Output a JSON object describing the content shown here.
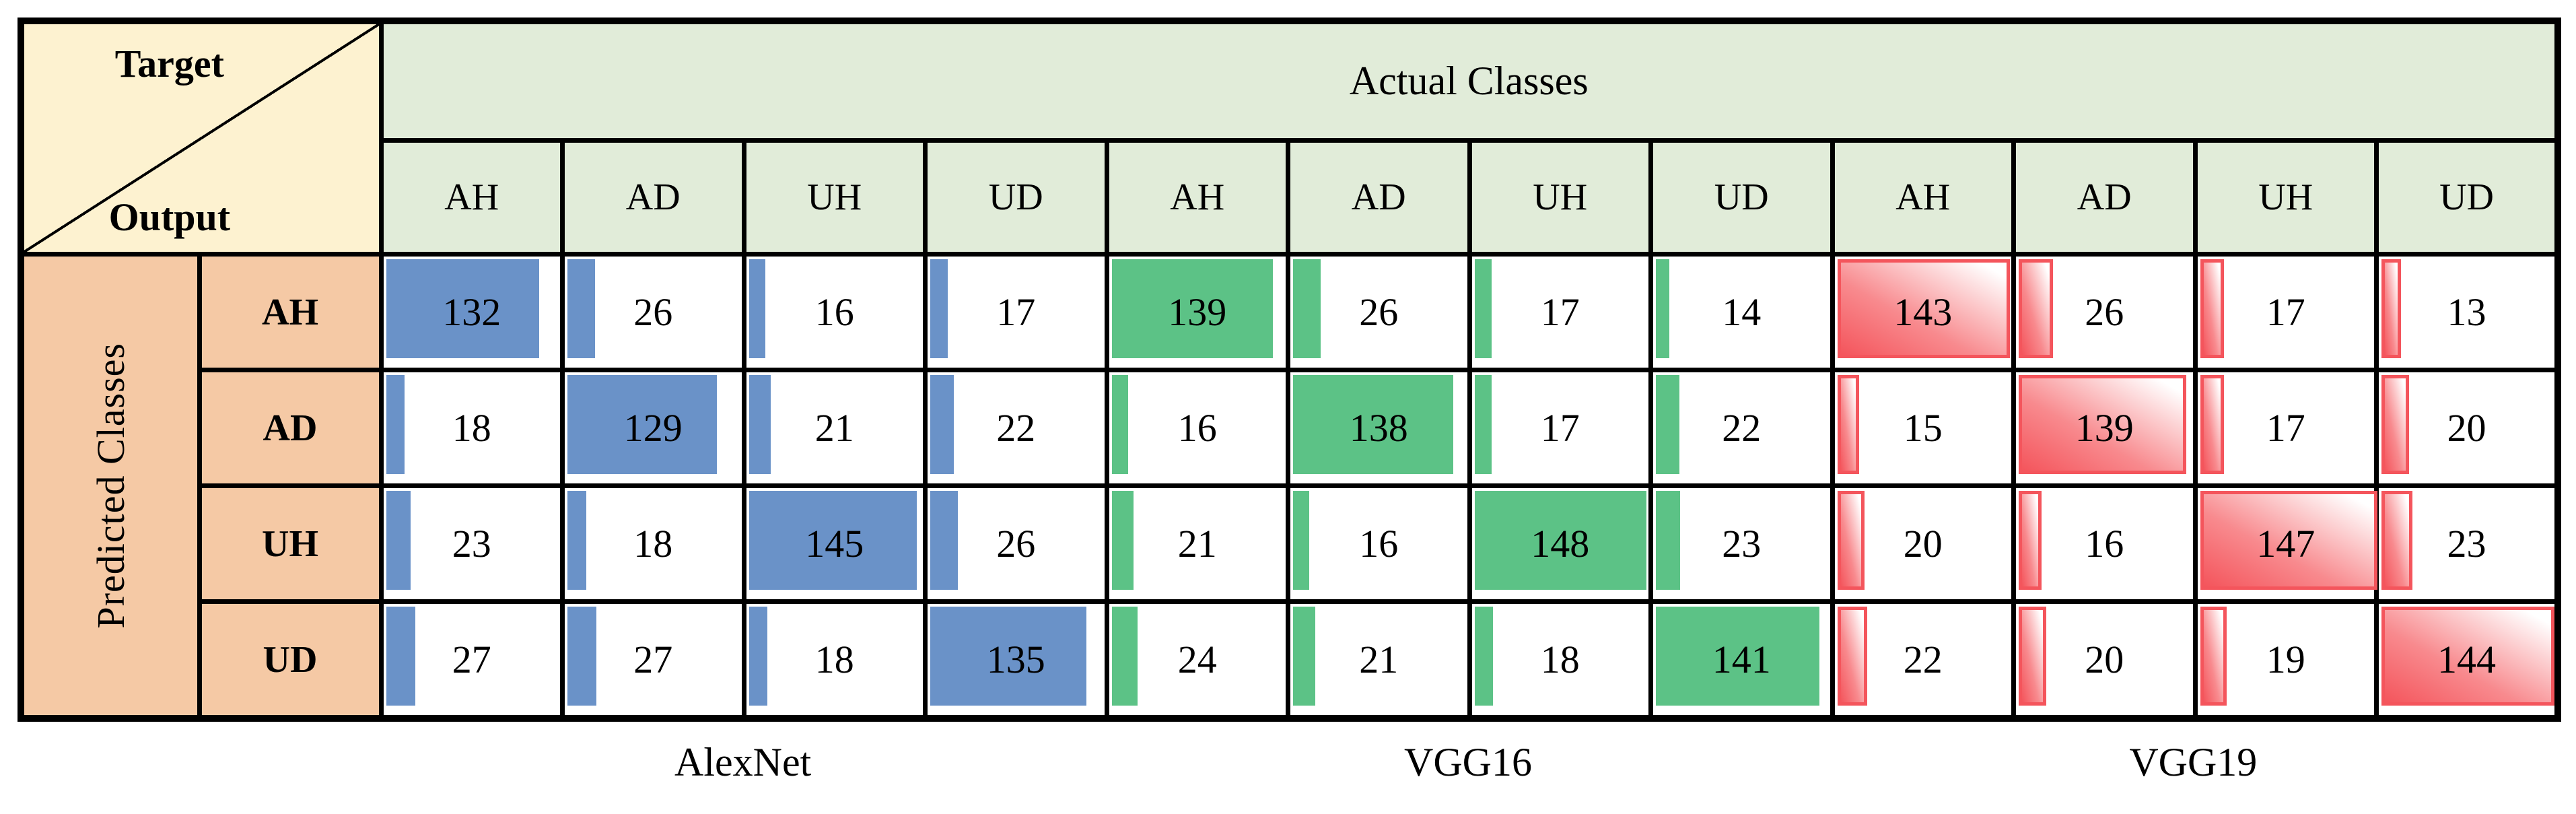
{
  "corner": {
    "top": "Target",
    "bottom": "Output"
  },
  "actual_header": "Actual Classes",
  "predicted_header": "Predicted Classes",
  "colors": {
    "corner_bg": "#FDF2D0",
    "header_bg": "#E1ECD9",
    "row_label_bg": "#F5C9A5",
    "alexnet_bar": "#6A92C8",
    "vgg16_bar": "#5CC286",
    "vgg19_bar_border": "#F4555C",
    "grid_border": "#000000"
  },
  "chart_data": {
    "type": "table",
    "subtype": "confusion-matrix-with-data-bars",
    "title": "",
    "rows_axis_label": "Predicted Classes",
    "cols_axis_label": "Actual Classes",
    "rows": [
      "AH",
      "AD",
      "UH",
      "UD"
    ],
    "cols": [
      "AH",
      "AD",
      "UH",
      "UD"
    ],
    "bar_scale_max": 150,
    "models": [
      {
        "name": "AlexNet",
        "bar_style": "solid",
        "bar_color": "#6A92C8",
        "matrix": [
          [
            132,
            26,
            16,
            17
          ],
          [
            18,
            129,
            21,
            22
          ],
          [
            23,
            18,
            145,
            26
          ],
          [
            27,
            27,
            18,
            135
          ]
        ]
      },
      {
        "name": "VGG16",
        "bar_style": "solid",
        "bar_color": "#5CC286",
        "matrix": [
          [
            139,
            26,
            17,
            14
          ],
          [
            16,
            138,
            17,
            22
          ],
          [
            21,
            16,
            148,
            23
          ],
          [
            24,
            21,
            18,
            141
          ]
        ]
      },
      {
        "name": "VGG19",
        "bar_style": "gradient-outline",
        "bar_color": "#F4555C",
        "matrix": [
          [
            143,
            26,
            17,
            13
          ],
          [
            15,
            139,
            17,
            20
          ],
          [
            20,
            16,
            147,
            23
          ],
          [
            22,
            20,
            19,
            144
          ]
        ]
      }
    ]
  }
}
